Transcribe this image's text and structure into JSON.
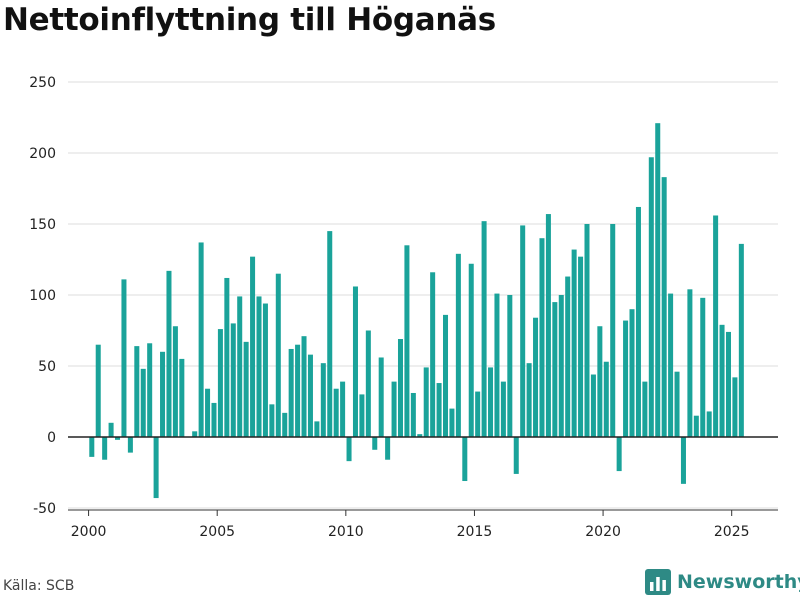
{
  "title": "Nettoinflyttning till Höganäs",
  "source": "Källa: SCB",
  "brand": {
    "name": "Newsworthy",
    "logo_icon": "bar-chart-logo-icon",
    "color": "#2e8a85"
  },
  "chart_data": {
    "type": "bar",
    "title": "Nettoinflyttning till Höganäs",
    "xlabel": "",
    "ylabel": "",
    "ylim": [
      -50,
      250
    ],
    "yticks": [
      -50,
      0,
      50,
      100,
      150,
      200,
      250
    ],
    "xlim": [
      1999.2,
      2026.8
    ],
    "xticks": [
      2000,
      2005,
      2010,
      2015,
      2020,
      2025
    ],
    "bar_color": "#1aa39a",
    "grid": true,
    "x": [
      2000.125,
      2000.375,
      2000.625,
      2000.875,
      2001.125,
      2001.375,
      2001.625,
      2001.875,
      2002.125,
      2002.375,
      2002.625,
      2002.875,
      2003.125,
      2003.375,
      2003.625,
      2003.875,
      2004.125,
      2004.375,
      2004.625,
      2004.875,
      2005.125,
      2005.375,
      2005.625,
      2005.875,
      2006.125,
      2006.375,
      2006.625,
      2006.875,
      2007.125,
      2007.375,
      2007.625,
      2007.875,
      2008.125,
      2008.375,
      2008.625,
      2008.875,
      2009.125,
      2009.375,
      2009.625,
      2009.875,
      2010.125,
      2010.375,
      2010.625,
      2010.875,
      2011.125,
      2011.375,
      2011.625,
      2011.875,
      2012.125,
      2012.375,
      2012.625,
      2012.875,
      2013.125,
      2013.375,
      2013.625,
      2013.875,
      2014.125,
      2014.375,
      2014.625,
      2014.875,
      2015.125,
      2015.375,
      2015.625,
      2015.875,
      2016.125,
      2016.375,
      2016.625,
      2016.875,
      2017.125,
      2017.375,
      2017.625,
      2017.875,
      2018.125,
      2018.375,
      2018.625,
      2018.875,
      2019.125,
      2019.375,
      2019.625,
      2019.875,
      2020.125,
      2020.375,
      2020.625,
      2020.875,
      2021.125,
      2021.375,
      2021.625,
      2021.875,
      2022.125,
      2022.375,
      2022.625,
      2022.875,
      2023.125,
      2023.375,
      2023.625,
      2023.875,
      2024.125,
      2024.375,
      2024.625,
      2024.875,
      2025.125,
      2025.375
    ],
    "values": [
      -14,
      65,
      -16,
      10,
      -2,
      111,
      -11,
      64,
      48,
      66,
      -43,
      60,
      117,
      78,
      55,
      0,
      4,
      137,
      34,
      24,
      76,
      112,
      80,
      99,
      67,
      127,
      99,
      94,
      23,
      115,
      17,
      62,
      65,
      71,
      58,
      11,
      52,
      145,
      34,
      39,
      -17,
      106,
      30,
      75,
      -9,
      56,
      -16,
      39,
      69,
      135,
      31,
      2,
      49,
      116,
      38,
      86,
      20,
      129,
      -31,
      122,
      32,
      152,
      49,
      101,
      39,
      100,
      -26,
      149,
      52,
      84,
      140,
      157,
      95,
      100,
      113,
      132,
      127,
      150,
      44,
      78,
      53,
      150,
      -24,
      82,
      90,
      162,
      39,
      197,
      221,
      183,
      101,
      46,
      -33,
      104,
      15,
      98,
      18,
      156,
      79,
      74,
      42,
      136
    ]
  }
}
